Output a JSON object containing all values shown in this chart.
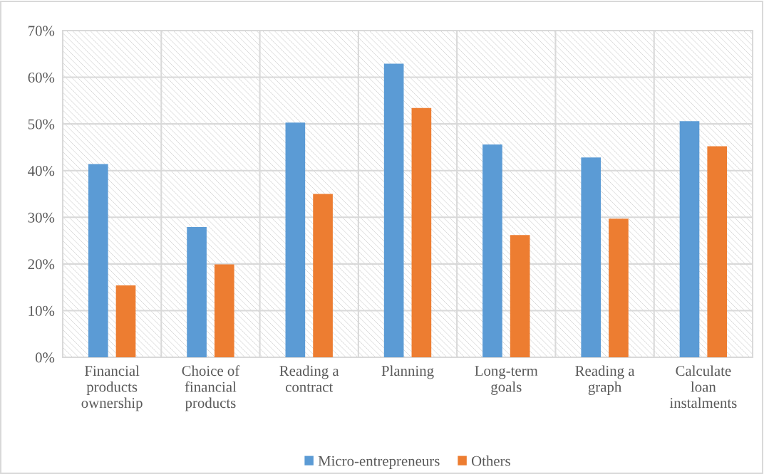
{
  "chart_data": {
    "type": "bar",
    "categories": [
      "Financial products ownership",
      "Choice of financial products",
      "Reading a contract",
      "Planning",
      "Long-term goals",
      "Reading a graph",
      "Calculate loan instalments"
    ],
    "series": [
      {
        "name": "Micro-entrepreneurs",
        "color": "#5b9bd5",
        "values": [
          41.4,
          27.9,
          50.3,
          62.9,
          45.6,
          42.8,
          50.6
        ]
      },
      {
        "name": "Others",
        "color": "#ed7d31",
        "values": [
          15.4,
          19.9,
          35.0,
          53.4,
          26.2,
          29.7,
          45.2
        ]
      }
    ],
    "ylim": [
      0,
      70
    ],
    "yticks": [
      {
        "value": 0,
        "label": "0%"
      },
      {
        "value": 10,
        "label": "10%"
      },
      {
        "value": 20,
        "label": "20%"
      },
      {
        "value": 30,
        "label": "30%"
      },
      {
        "value": 40,
        "label": "40%"
      },
      {
        "value": 50,
        "label": "50%"
      },
      {
        "value": 60,
        "label": "60%"
      },
      {
        "value": 70,
        "label": "70%"
      }
    ],
    "grid": true,
    "legend": "bottom"
  }
}
